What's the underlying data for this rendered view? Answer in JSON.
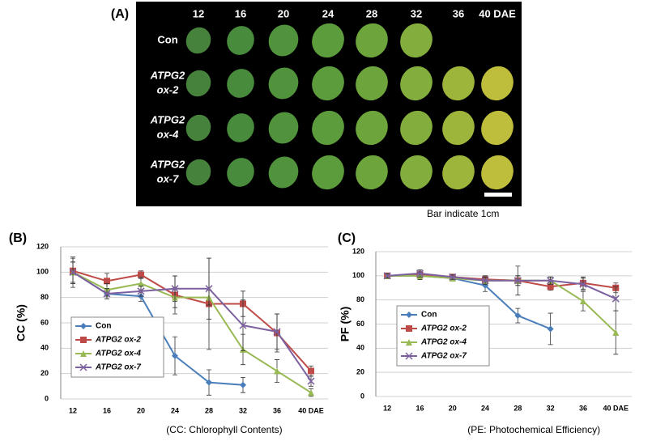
{
  "panel_a": {
    "label": "(A)",
    "columns": [
      "12",
      "16",
      "20",
      "24",
      "28",
      "32",
      "36",
      "40 DAE"
    ],
    "rows": [
      [
        "Con"
      ],
      [
        "ATPG2",
        "ox-2"
      ],
      [
        "ATPG2",
        "ox-4"
      ],
      [
        "ATPG2",
        "ox-7"
      ]
    ],
    "scale_note": "Bar indicate 1cm"
  },
  "chart_data": [
    {
      "type": "line",
      "title": "(B)",
      "ylabel": "CC (%)",
      "caption": "(CC: Chlorophyll Contents)",
      "categories": [
        "12",
        "16",
        "20",
        "24",
        "28",
        "32",
        "36",
        "40 DAE"
      ],
      "ylim": [
        0,
        120
      ],
      "yticks": [
        0,
        20,
        40,
        60,
        80,
        100,
        120
      ],
      "grid": true,
      "series": [
        {
          "name": "Con",
          "color": "#4a7ebb",
          "marker": "diamond",
          "values": [
            100,
            83,
            81,
            34,
            13,
            11,
            null,
            null
          ],
          "errors": [
            12,
            4,
            4,
            15,
            10,
            6,
            null,
            null
          ]
        },
        {
          "name": "ATPG2 ox-2",
          "color": "#be4b48",
          "marker": "square",
          "values": [
            101,
            93,
            98,
            82,
            75,
            75,
            52,
            22
          ],
          "errors": [
            10,
            6,
            3,
            15,
            36,
            10,
            15,
            4
          ]
        },
        {
          "name": "ATPG2 ox-4",
          "color": "#98b954",
          "marker": "triangle",
          "values": [
            100,
            86,
            91,
            80,
            80,
            39,
            22,
            5
          ],
          "errors": [
            8,
            5,
            5,
            8,
            6,
            12,
            9,
            3
          ]
        },
        {
          "name": "ATPG2 ox-7",
          "color": "#7d60a0",
          "marker": "cross",
          "values": [
            100,
            83,
            85,
            87,
            87,
            58,
            53,
            14
          ],
          "errors": [
            8,
            4,
            4,
            10,
            24,
            20,
            14,
            4
          ]
        }
      ]
    },
    {
      "type": "line",
      "title": "(C)",
      "ylabel": "PF (%)",
      "caption": "(PE: Photochemical Efficiency)",
      "categories": [
        "12",
        "16",
        "20",
        "24",
        "28",
        "32",
        "36",
        "40 DAE"
      ],
      "ylim": [
        0,
        120
      ],
      "yticks": [
        0,
        20,
        40,
        60,
        80,
        100,
        120
      ],
      "grid": true,
      "series": [
        {
          "name": "Con",
          "color": "#4a7ebb",
          "marker": "diamond",
          "values": [
            100,
            100,
            98,
            92,
            67,
            56,
            null,
            null
          ],
          "errors": [
            2,
            3,
            2,
            5,
            6,
            13,
            null,
            null
          ]
        },
        {
          "name": "ATPG2 ox-2",
          "color": "#be4b48",
          "marker": "square",
          "values": [
            100,
            101,
            99,
            97,
            96,
            91,
            94,
            90
          ],
          "errors": [
            2,
            3,
            2,
            3,
            12,
            3,
            5,
            4
          ]
        },
        {
          "name": "ATPG2 ox-4",
          "color": "#98b954",
          "marker": "triangle",
          "values": [
            100,
            100,
            98,
            96,
            96,
            96,
            79,
            53
          ],
          "errors": [
            2,
            3,
            2,
            3,
            4,
            3,
            8,
            18
          ]
        },
        {
          "name": "ATPG2 ox-7",
          "color": "#7d60a0",
          "marker": "cross",
          "values": [
            100,
            102,
            99,
            96,
            96,
            96,
            93,
            81
          ],
          "errors": [
            2,
            3,
            2,
            3,
            4,
            3,
            5,
            10
          ]
        }
      ]
    }
  ]
}
